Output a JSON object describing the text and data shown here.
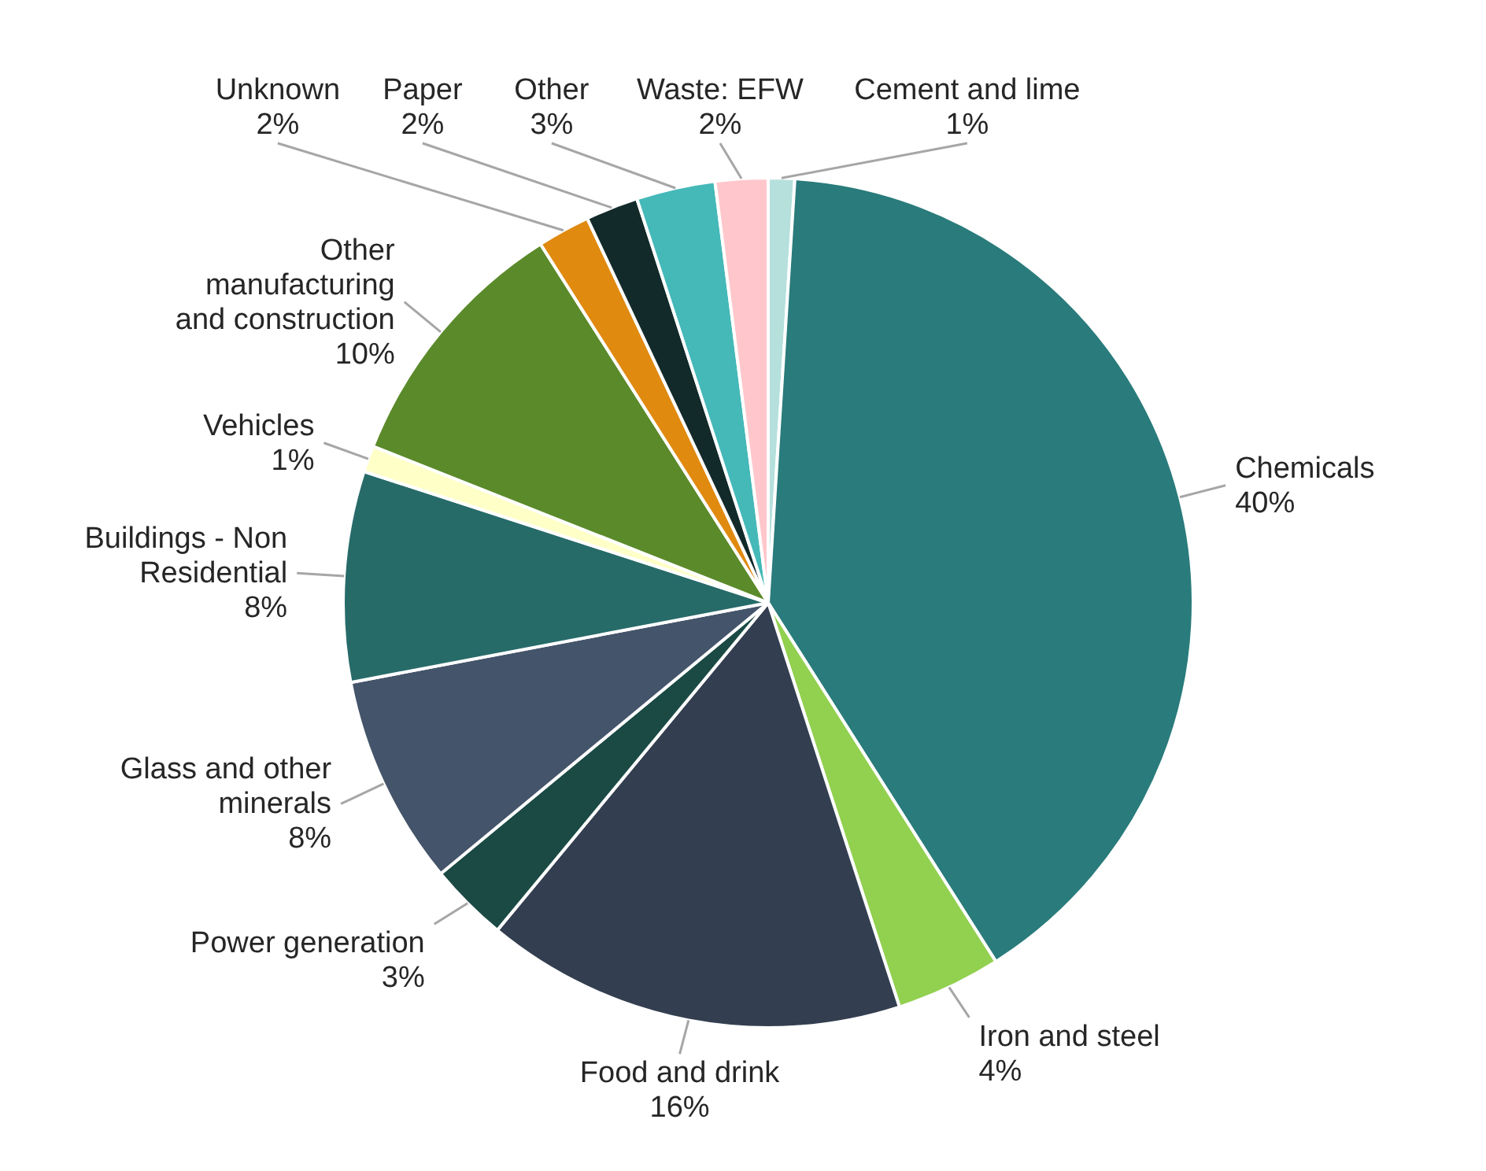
{
  "chart_data": {
    "type": "pie",
    "categories": [
      "Cement and lime",
      "Chemicals",
      "Iron and steel",
      "Food and drink",
      "Power generation",
      "Glass and other minerals",
      "Buildings - Non Residential",
      "Vehicles",
      "Other manufacturing and construction",
      "Unknown",
      "Paper",
      "Other",
      "Waste: EFW"
    ],
    "values": [
      1,
      40,
      4,
      16,
      3,
      8,
      8,
      1,
      10,
      2,
      2,
      3,
      2
    ],
    "colors": [
      "#b5e0dc",
      "#2a7b7b",
      "#92d050",
      "#333f50",
      "#1b4a45",
      "#44546a",
      "#276b69",
      "#ffffc8",
      "#5b8a2a",
      "#e08a10",
      "#132a2a",
      "#45b8b8",
      "#ffc7cb"
    ],
    "value_labels": [
      "1%",
      "40%",
      "4%",
      "16%",
      "3%",
      "8%",
      "8%",
      "1%",
      "10%",
      "2%",
      "2%",
      "3%",
      "2%"
    ]
  }
}
